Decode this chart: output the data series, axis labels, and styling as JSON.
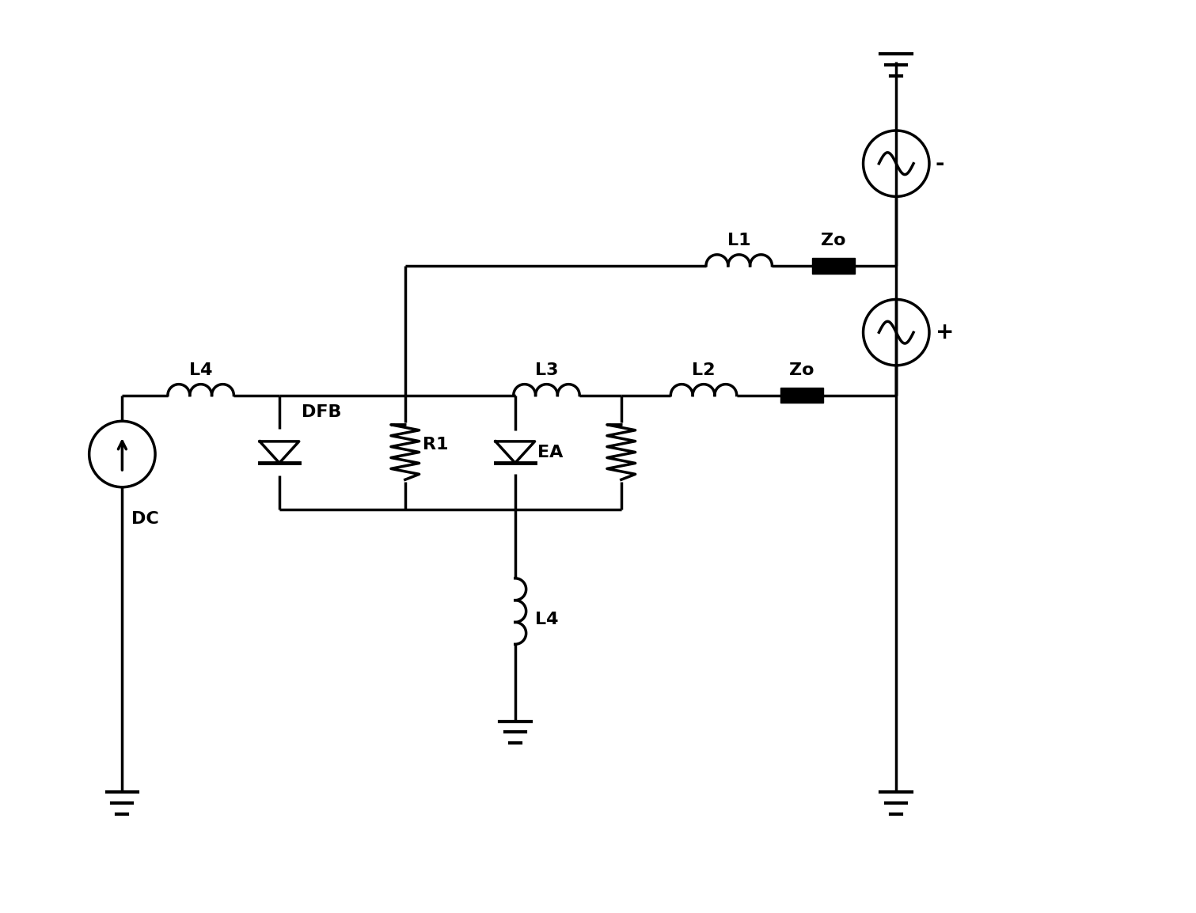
{
  "bg_color": "#ffffff",
  "line_color": "#000000",
  "line_width": 2.5,
  "fig_width": 15.11,
  "fig_height": 11.54,
  "labels": {
    "L4_top": "L4",
    "DFB": "DFB",
    "R1": "R1",
    "L3": "L3",
    "EA": "EA",
    "L2": "L2",
    "L1": "L1",
    "Zo_top": "Zo",
    "Zo_bot": "Zo",
    "DC": "DC",
    "L4_bot": "L4",
    "minus": "-",
    "plus": "+"
  }
}
